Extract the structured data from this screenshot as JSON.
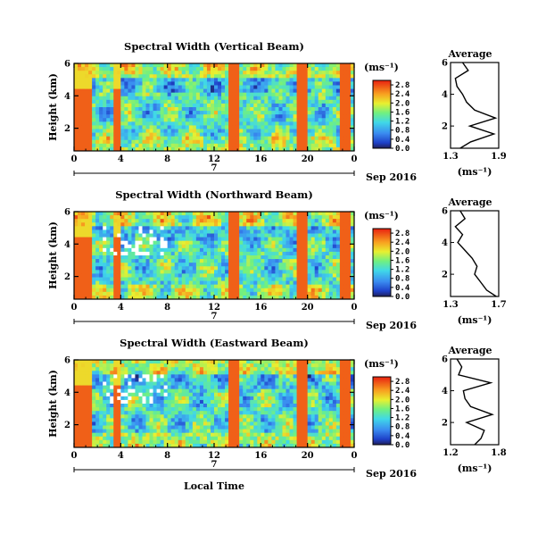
{
  "xlabel": "Local Time",
  "date_label": "7",
  "month_year": "Sep 2016",
  "unit": "(ms⁻¹)",
  "ylabel": "Height (km)",
  "avg_title": "Average",
  "chart_data": [
    {
      "type": "heatmap",
      "title": "Spectral Width (Vertical Beam)",
      "xlabel": "Local Time",
      "ylabel": "Height (km)",
      "x_ticks": [
        "0",
        "4",
        "8",
        "12",
        "16",
        "20",
        "0"
      ],
      "y_ticks": [
        "2",
        "4",
        "6"
      ],
      "x_range": [
        0,
        24
      ],
      "y_range": [
        0.6,
        6.0
      ],
      "colorbar_label": "(ms⁻¹)",
      "colorbar_ticks": [
        "0.0",
        "0.4",
        "0.8",
        "1.2",
        "1.6",
        "2.0",
        "2.4",
        "2.8"
      ],
      "colorbar_range": [
        0.0,
        3.0
      ],
      "high_columns_hours": [
        0.5,
        3.7,
        13.8,
        19.6,
        23.2
      ],
      "average": {
        "xlabel": "(ms⁻¹)",
        "x_ticks": [
          "1.3",
          "1.9"
        ],
        "y_ticks": [
          "2",
          "4",
          "6"
        ],
        "xlim": [
          1.3,
          1.9
        ],
        "heights": [
          0.6,
          1.0,
          1.5,
          2.0,
          2.5,
          3.0,
          3.5,
          4.0,
          4.5,
          5.0,
          5.5,
          6.0
        ],
        "values": [
          1.42,
          1.55,
          1.84,
          1.54,
          1.86,
          1.6,
          1.5,
          1.45,
          1.38,
          1.36,
          1.52,
          1.45
        ]
      }
    },
    {
      "type": "heatmap",
      "title": "Spectral Width (Northward Beam)",
      "xlabel": "Local Time",
      "ylabel": "Height (km)",
      "x_ticks": [
        "0",
        "4",
        "8",
        "12",
        "16",
        "20",
        "0"
      ],
      "y_ticks": [
        "2",
        "4",
        "6"
      ],
      "x_range": [
        0,
        24
      ],
      "y_range": [
        0.6,
        6.0
      ],
      "colorbar_label": "(ms⁻¹)",
      "colorbar_ticks": [
        "0.0",
        "0.4",
        "0.8",
        "1.2",
        "1.6",
        "2.0",
        "2.4",
        "2.8"
      ],
      "colorbar_range": [
        0.0,
        3.0
      ],
      "high_columns_hours": [
        0.5,
        3.7,
        13.8,
        19.6,
        23.2
      ],
      "average": {
        "xlabel": "(ms⁻¹)",
        "x_ticks": [
          "1.3",
          "1.7"
        ],
        "y_ticks": [
          "2",
          "4",
          "6"
        ],
        "xlim": [
          1.3,
          1.7
        ],
        "heights": [
          0.6,
          1.0,
          1.5,
          2.0,
          2.5,
          3.0,
          3.5,
          4.0,
          4.5,
          5.0,
          5.5,
          6.0
        ],
        "values": [
          1.68,
          1.6,
          1.55,
          1.5,
          1.52,
          1.48,
          1.42,
          1.36,
          1.4,
          1.34,
          1.42,
          1.38
        ]
      }
    },
    {
      "type": "heatmap",
      "title": "Spectral Width (Eastward Beam)",
      "xlabel": "Local Time",
      "ylabel": "Height (km)",
      "x_ticks": [
        "0",
        "4",
        "8",
        "12",
        "16",
        "20",
        "0"
      ],
      "y_ticks": [
        "2",
        "4",
        "6"
      ],
      "x_range": [
        0,
        24
      ],
      "y_range": [
        0.6,
        6.0
      ],
      "colorbar_label": "(ms⁻¹)",
      "colorbar_ticks": [
        "0.0",
        "0.4",
        "0.8",
        "1.2",
        "1.6",
        "2.0",
        "2.4",
        "2.8"
      ],
      "colorbar_range": [
        0.0,
        3.0
      ],
      "high_columns_hours": [
        0.5,
        3.7,
        13.8,
        19.6,
        23.2
      ],
      "average": {
        "xlabel": "(ms⁻¹)",
        "x_ticks": [
          "1.2",
          "1.8"
        ],
        "y_ticks": [
          "2",
          "4",
          "6"
        ],
        "xlim": [
          1.2,
          1.8
        ],
        "heights": [
          0.6,
          1.0,
          1.5,
          2.0,
          2.5,
          3.0,
          3.5,
          4.0,
          4.5,
          5.0,
          5.5,
          6.0
        ],
        "values": [
          1.5,
          1.58,
          1.62,
          1.4,
          1.72,
          1.45,
          1.38,
          1.36,
          1.7,
          1.3,
          1.34,
          1.28
        ]
      }
    }
  ]
}
